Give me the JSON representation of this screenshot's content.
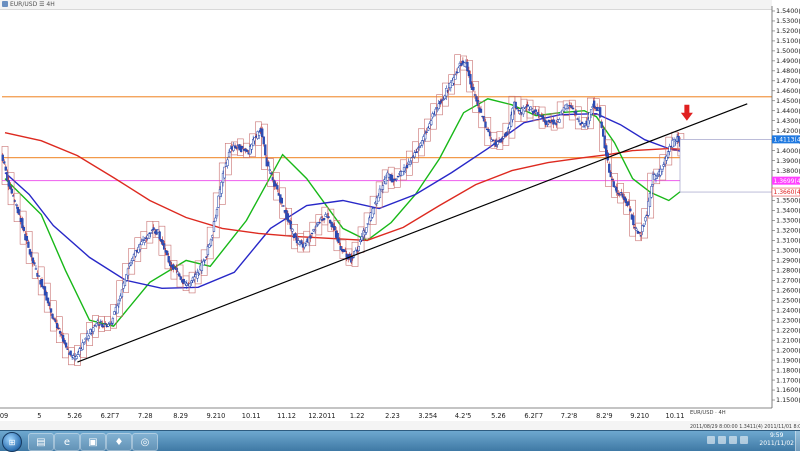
{
  "window": {
    "title": "EUR/USD ☰ 4H",
    "app_icon": "chart-window-icon"
  },
  "chart_data": {
    "type": "candlestick",
    "symbol": "EUR/USD",
    "timeframe": "4H",
    "ylim": [
      1.145,
      1.545
    ],
    "y_ticks": [
      "1.5400(",
      "1.5300(",
      "1.5200(",
      "1.5100(",
      "1.5000(",
      "1.4900(",
      "1.4800(",
      "1.4700(",
      "1.4600(",
      "1.4500(",
      "1.4400(",
      "1.4300(",
      "1.4200(",
      "1.4100(",
      "1.4000(",
      "1.3900(",
      "1.3800(",
      "1.3700(",
      "1.3600(",
      "1.3500(",
      "1.3400(",
      "1.3300(",
      "1.3200(",
      "1.3100(",
      "1.3000(",
      "1.2900(",
      "1.2800(",
      "1.2700(",
      "1.2600(",
      "1.2500(",
      "1.2400(",
      "1.2300(",
      "1.2200(",
      "1.2100(",
      "1.2000(",
      "1.1900(",
      "1.1800(",
      "1.1700(",
      "1.1600(",
      "1.1500("
    ],
    "x_ticks": [
      "09",
      "5",
      "5.26",
      "6.2Г7",
      "7.28",
      "8.29",
      "9.210",
      "10.11",
      "11.12",
      "12.2011",
      "1.22",
      "2.23",
      "3.254",
      "4.2'5",
      "5.26",
      "6.2Г7",
      "7.2'8",
      "8.2'9",
      "9.210",
      "10.11"
    ],
    "price_path": [
      1.398,
      1.372,
      1.352,
      1.335,
      1.312,
      1.292,
      1.276,
      1.262,
      1.243,
      1.226,
      1.212,
      1.198,
      1.192,
      1.2,
      1.212,
      1.22,
      1.228,
      1.225,
      1.226,
      1.24,
      1.262,
      1.282,
      1.296,
      1.306,
      1.312,
      1.322,
      1.318,
      1.3,
      1.286,
      1.279,
      1.27,
      1.265,
      1.272,
      1.282,
      1.296,
      1.318,
      1.352,
      1.382,
      1.402,
      1.404,
      1.401,
      1.398,
      1.412,
      1.422,
      1.386,
      1.371,
      1.355,
      1.338,
      1.322,
      1.309,
      1.306,
      1.312,
      1.322,
      1.331,
      1.336,
      1.323,
      1.306,
      1.296,
      1.291,
      1.302,
      1.317,
      1.331,
      1.348,
      1.363,
      1.376,
      1.37,
      1.376,
      1.383,
      1.394,
      1.402,
      1.414,
      1.427,
      1.442,
      1.451,
      1.463,
      1.472,
      1.489,
      1.486,
      1.463,
      1.445,
      1.428,
      1.412,
      1.407,
      1.412,
      1.42,
      1.447,
      1.437,
      1.445,
      1.44,
      1.437,
      1.428,
      1.431,
      1.427,
      1.441,
      1.445,
      1.438,
      1.426,
      1.427,
      1.447,
      1.441,
      1.404,
      1.372,
      1.36,
      1.353,
      1.344,
      1.32,
      1.317,
      1.338,
      1.373,
      1.377,
      1.392,
      1.406,
      1.412,
      1.4,
      1.386,
      1.38
    ],
    "moving_averages": [
      {
        "color": "#18b818",
        "points": [
          [
            0,
            1.372
          ],
          [
            6,
            1.336
          ],
          [
            10,
            1.28
          ],
          [
            14,
            1.23
          ],
          [
            18,
            1.224
          ],
          [
            24,
            1.268
          ],
          [
            30,
            1.29
          ],
          [
            34,
            1.284
          ],
          [
            40,
            1.33
          ],
          [
            46,
            1.396
          ],
          [
            50,
            1.372
          ],
          [
            56,
            1.322
          ],
          [
            60,
            1.31
          ],
          [
            64,
            1.328
          ],
          [
            68,
            1.356
          ],
          [
            72,
            1.392
          ],
          [
            76,
            1.438
          ],
          [
            80,
            1.452
          ],
          [
            84,
            1.446
          ],
          [
            88,
            1.435
          ],
          [
            92,
            1.438
          ],
          [
            96,
            1.44
          ],
          [
            98,
            1.434
          ],
          [
            101,
            1.408
          ],
          [
            104,
            1.372
          ],
          [
            107,
            1.358
          ],
          [
            110,
            1.35
          ],
          [
            113,
            1.364
          ]
        ]
      },
      {
        "color": "#2828c8",
        "points": [
          [
            0,
            1.378
          ],
          [
            4,
            1.356
          ],
          [
            8,
            1.325
          ],
          [
            14,
            1.293
          ],
          [
            20,
            1.27
          ],
          [
            26,
            1.262
          ],
          [
            32,
            1.263
          ],
          [
            38,
            1.278
          ],
          [
            44,
            1.322
          ],
          [
            50,
            1.345
          ],
          [
            56,
            1.35
          ],
          [
            62,
            1.342
          ],
          [
            68,
            1.356
          ],
          [
            74,
            1.378
          ],
          [
            80,
            1.402
          ],
          [
            86,
            1.428
          ],
          [
            92,
            1.436
          ],
          [
            98,
            1.437
          ],
          [
            102,
            1.426
          ],
          [
            106,
            1.411
          ],
          [
            110,
            1.402
          ],
          [
            113,
            1.398
          ]
        ]
      },
      {
        "color": "#dd2a20",
        "points": [
          [
            0,
            1.418
          ],
          [
            6,
            1.41
          ],
          [
            12,
            1.395
          ],
          [
            18,
            1.373
          ],
          [
            24,
            1.35
          ],
          [
            30,
            1.333
          ],
          [
            36,
            1.322
          ],
          [
            42,
            1.317
          ],
          [
            48,
            1.314
          ],
          [
            54,
            1.312
          ],
          [
            60,
            1.31
          ],
          [
            66,
            1.323
          ],
          [
            72,
            1.345
          ],
          [
            78,
            1.366
          ],
          [
            84,
            1.38
          ],
          [
            90,
            1.388
          ],
          [
            96,
            1.393
          ],
          [
            100,
            1.396
          ],
          [
            104,
            1.4
          ],
          [
            110,
            1.402
          ],
          [
            113,
            1.401
          ]
        ]
      }
    ],
    "horizontal_lines": [
      {
        "value": 1.454,
        "color": "#f29a4a"
      },
      {
        "value": 1.393,
        "color": "#f29a4a"
      },
      {
        "value": 1.37,
        "color": "#f070f0"
      }
    ],
    "trendline": {
      "from": [
        12,
        1.188
      ],
      "to": [
        123,
        1.447
      ],
      "color": "#000000"
    },
    "price_labels": [
      {
        "text": "1.4113(4",
        "value": 1.4113,
        "bg": "#1e78e0",
        "fg": "#ffffff"
      },
      {
        "text": "1.3699(4",
        "value": 1.3699,
        "bg": "#ff40ff",
        "fg": "#ffffff"
      },
      {
        "text": "1.3660(4",
        "value": 1.3585,
        "bg": "#ffffff",
        "fg": "#e02020"
      }
    ],
    "annotation_arrow": {
      "bar": 112,
      "value": 1.42,
      "color": "#e02020"
    },
    "status_text": "2011/08/29 8:00:00  1.3411(4)  2011/11/01 8:00:00",
    "symbol_box": "EUR/USD · 4H"
  },
  "taskbar": {
    "start_label": "⊞",
    "apps": [
      "explorer-icon",
      "internet-explorer-icon",
      "control-panel-icon",
      "trading-app-icon",
      "browser-icon"
    ],
    "clock_time": "9:59",
    "clock_date": "2011/11/02"
  }
}
